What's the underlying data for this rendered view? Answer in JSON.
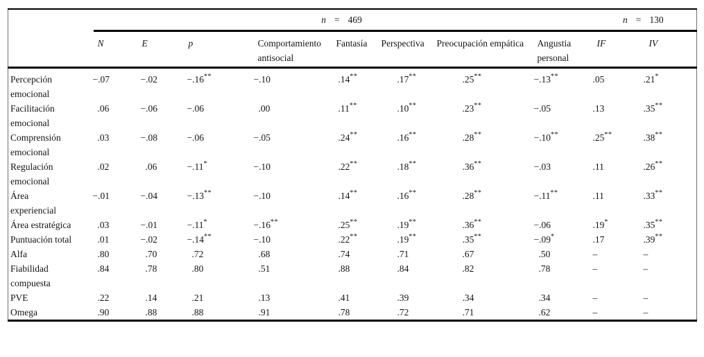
{
  "table": {
    "spanners": [
      {
        "var": "n",
        "eq": "=",
        "value": "469"
      },
      {
        "var": "n",
        "eq": "=",
        "value": "130"
      }
    ],
    "columns": [
      {
        "label": "N",
        "italic": true
      },
      {
        "label": "E",
        "italic": true
      },
      {
        "label": "p",
        "italic": true
      },
      {
        "label": "Comportamiento antisocial",
        "italic": false
      },
      {
        "label": "Fantasía",
        "italic": false
      },
      {
        "label": "Perspectiva",
        "italic": false
      },
      {
        "label": "Preocupación empática",
        "italic": false
      },
      {
        "label": "Angustia personal",
        "italic": false
      },
      {
        "label": "IF",
        "italic": true
      },
      {
        "label": "IV",
        "italic": true
      }
    ],
    "rows": [
      {
        "label": "Percepción emocional",
        "values": [
          "−.07",
          "−.02",
          "−.16**",
          "−.10",
          ".14**",
          ".17**",
          ".25**",
          "−.13**",
          ".05",
          ".21*"
        ]
      },
      {
        "label": "Facilitación emocional",
        "values": [
          ".06",
          "−.06",
          "−.06",
          ".00",
          ".11**",
          ".10**",
          ".23**",
          "−.05",
          ".13",
          ".35**"
        ]
      },
      {
        "label": "Comprensión emocional",
        "values": [
          ".03",
          "−.08",
          "−.06",
          "−.05",
          ".24**",
          ".16**",
          ".28**",
          "−.10**",
          ".25**",
          ".38**"
        ]
      },
      {
        "label": "Regulación emocional",
        "values": [
          ".02",
          ".06",
          "−.11*",
          "−.10",
          ".22**",
          ".18**",
          ".36**",
          "−.03",
          ".11",
          ".26**"
        ]
      },
      {
        "label": "Área experiencial",
        "values": [
          "−.01",
          "−.04",
          "−.13**",
          "−.10",
          ".14**",
          ".16**",
          ".28**",
          "−.11**",
          ".11",
          ".33**"
        ]
      },
      {
        "label": "Área estratégica",
        "values": [
          ".03",
          "−.01",
          "−.11*",
          "−.16**",
          ".25**",
          ".19**",
          ".36**",
          "−.06",
          ".19*",
          ".35**"
        ]
      },
      {
        "label": "Puntuación total",
        "values": [
          ".01",
          "−.02",
          "−.14**",
          "−.10",
          ".22**",
          ".19**",
          ".35**",
          "−.09*",
          ".17",
          ".39**"
        ]
      },
      {
        "label": "Alfa",
        "values": [
          ".80",
          ".70",
          ".72",
          ".68",
          ".74",
          ".71",
          ".67",
          ".50",
          "–",
          "–"
        ]
      },
      {
        "label": "Fiabilidad compuesta",
        "values": [
          ".84",
          ".78",
          ".80",
          ".51",
          ".88",
          ".84",
          ".82",
          ".78",
          "–",
          "–"
        ]
      },
      {
        "label": "PVE",
        "values": [
          ".22",
          ".14",
          ".21",
          ".13",
          ".41",
          ".39",
          ".34",
          ".34",
          "–",
          "–"
        ]
      },
      {
        "label": "Omega",
        "values": [
          ".90",
          ".88",
          ".88",
          ".91",
          ".78",
          ".72",
          ".71",
          ".62",
          "–",
          "–"
        ]
      }
    ]
  }
}
